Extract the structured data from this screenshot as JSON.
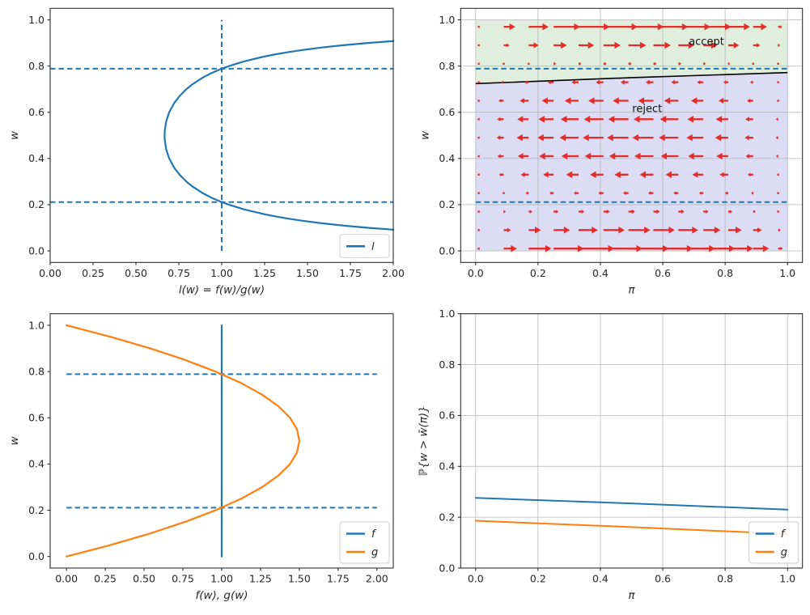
{
  "figure": {
    "background": "#ffffff",
    "description": "2x2 grid of statistical plots: likelihood ratio, accept/reject phase diagram with vector field, densities f and g, acceptance probability"
  },
  "colors": {
    "blue": "#1f77b4",
    "orange": "#ff7f0e",
    "red": "#e52420",
    "black": "#000000",
    "grid": "#b0b0b0",
    "spine": "#1a1a1a",
    "accept_fill": "#dfeedd",
    "reject_fill": "#dcdcf5",
    "legend_border": "#cccccc"
  },
  "chart_data": [
    {
      "id": "likelihood_ratio",
      "type": "line",
      "xlabel": "l(w) = f(w)/g(w)",
      "ylabel": "w",
      "xlim": [
        0,
        2
      ],
      "ylim": [
        -0.05,
        1.05
      ],
      "grid": false,
      "xtick_values": [
        0,
        0.25,
        0.5,
        0.75,
        1.0,
        1.25,
        1.5,
        1.75,
        2.0
      ],
      "xtick_labels": [
        "0.00",
        "0.25",
        "0.50",
        "0.75",
        "1.00",
        "1.25",
        "1.50",
        "1.75",
        "2.00"
      ],
      "ytick_values": [
        0,
        0.2,
        0.4,
        0.6,
        0.8,
        1.0
      ],
      "ytick_labels": [
        "0.0",
        "0.2",
        "0.4",
        "0.6",
        "0.8",
        "1.0"
      ],
      "series": [
        {
          "name": "l",
          "color": "#1f77b4",
          "width": 2.2,
          "points": [
            [
              2.0,
              0.0918
            ],
            [
              1.852,
              0.1
            ],
            [
              1.702,
              0.11
            ],
            [
              1.578,
              0.12
            ],
            [
              1.474,
              0.13
            ],
            [
              1.384,
              0.14
            ],
            [
              1.307,
              0.15
            ],
            [
              1.24,
              0.16
            ],
            [
              1.129,
              0.18
            ],
            [
              1.042,
              0.2
            ],
            [
              1.0,
              0.2113
            ],
            [
              0.941,
              0.23
            ],
            [
              0.889,
              0.25
            ],
            [
              0.827,
              0.28
            ],
            [
              0.794,
              0.3
            ],
            [
              0.754,
              0.33
            ],
            [
              0.723,
              0.36
            ],
            [
              0.694,
              0.4
            ],
            [
              0.676,
              0.44
            ],
            [
              0.668,
              0.48
            ],
            [
              0.667,
              0.5
            ],
            [
              0.668,
              0.52
            ],
            [
              0.676,
              0.56
            ],
            [
              0.694,
              0.6
            ],
            [
              0.723,
              0.64
            ],
            [
              0.754,
              0.67
            ],
            [
              0.794,
              0.7
            ],
            [
              0.827,
              0.72
            ],
            [
              0.889,
              0.75
            ],
            [
              0.941,
              0.77
            ],
            [
              1.0,
              0.7887
            ],
            [
              1.042,
              0.8
            ],
            [
              1.129,
              0.82
            ],
            [
              1.24,
              0.84
            ],
            [
              1.307,
              0.85
            ],
            [
              1.384,
              0.86
            ],
            [
              1.474,
              0.87
            ],
            [
              1.578,
              0.88
            ],
            [
              1.702,
              0.89
            ],
            [
              1.852,
              0.9
            ],
            [
              2.0,
              0.9082
            ]
          ]
        }
      ],
      "dashed_guides": [
        {
          "orient": "h",
          "at": 0.7887,
          "from": 0,
          "to": 2
        },
        {
          "orient": "h",
          "at": 0.2113,
          "from": 0,
          "to": 2
        },
        {
          "orient": "v",
          "at": 1.0,
          "from": 0,
          "to": 1
        }
      ],
      "legend": {
        "loc": "lower right",
        "entries": [
          {
            "label": "l",
            "color": "#1f77b4"
          }
        ]
      }
    },
    {
      "id": "phase_quiver",
      "type": "quiver",
      "xlabel": "π",
      "ylabel": "w",
      "xlim": [
        -0.048,
        1.048
      ],
      "ylim": [
        -0.05,
        1.05
      ],
      "grid": true,
      "xtick_values": [
        0,
        0.2,
        0.4,
        0.6,
        0.8,
        1.0
      ],
      "xtick_labels": [
        "0.0",
        "0.2",
        "0.4",
        "0.6",
        "0.8",
        "1.0"
      ],
      "ytick_values": [
        0,
        0.2,
        0.4,
        0.6,
        0.8,
        1.0
      ],
      "ytick_labels": [
        "0.0",
        "0.2",
        "0.4",
        "0.6",
        "0.8",
        "1.0"
      ],
      "regions": [
        {
          "name": "accept",
          "color": "#dfeedd",
          "side": "above"
        },
        {
          "name": "reject",
          "color": "#dcdcf5",
          "side": "below"
        }
      ],
      "threshold_line": {
        "name": "wbar",
        "color": "#000000",
        "width": 1.6,
        "points": [
          [
            0,
            0.724
          ],
          [
            0.5,
            0.75
          ],
          [
            1,
            0.772
          ]
        ]
      },
      "dashed_guides": [
        {
          "orient": "h",
          "at": 0.7887,
          "from": 0,
          "to": 1
        },
        {
          "orient": "h",
          "at": 0.2113,
          "from": 0,
          "to": 1
        }
      ],
      "quiver": {
        "color": "#e52420",
        "pi_grid": [
          0.01,
          0.09,
          0.17,
          0.25,
          0.33,
          0.41,
          0.49,
          0.57,
          0.65,
          0.73,
          0.81,
          0.89,
          0.97
        ],
        "w_grid": [
          0.01,
          0.09,
          0.17,
          0.25,
          0.33,
          0.41,
          0.49,
          0.57,
          0.65,
          0.73,
          0.81,
          0.89,
          0.97
        ],
        "row_factors": [
          0.9406,
          0.5086,
          0.1534,
          -0.125,
          -0.3266,
          -0.4514,
          -0.4994,
          -0.4706,
          -0.365,
          -0.1826,
          0.0766,
          0.4126,
          0.8254
        ],
        "col_factors": [
          0.0099,
          0.0819,
          0.1411,
          0.1875,
          0.2211,
          0.2419,
          0.2499,
          0.2451,
          0.2275,
          0.1971,
          0.1539,
          0.0979,
          0.0291
        ],
        "scale": 0.55
      },
      "annotations": [
        {
          "text": "accept",
          "x": 0.74,
          "y": 0.905
        },
        {
          "text": "reject",
          "x": 0.55,
          "y": 0.615
        }
      ],
      "legend": null
    },
    {
      "id": "densities",
      "type": "line",
      "xlabel": "f(w), g(w)",
      "ylabel": "w",
      "xlim": [
        -0.105,
        2.105
      ],
      "ylim": [
        -0.05,
        1.05
      ],
      "grid": false,
      "xtick_values": [
        0,
        0.25,
        0.5,
        0.75,
        1.0,
        1.25,
        1.5,
        1.75,
        2.0
      ],
      "xtick_labels": [
        "0.00",
        "0.25",
        "0.50",
        "0.75",
        "1.00",
        "1.25",
        "1.50",
        "1.75",
        "2.00"
      ],
      "ytick_values": [
        0,
        0.2,
        0.4,
        0.6,
        0.8,
        1.0
      ],
      "ytick_labels": [
        "0.0",
        "0.2",
        "0.4",
        "0.6",
        "0.8",
        "1.0"
      ],
      "series": [
        {
          "name": "f",
          "color": "#1f77b4",
          "width": 2.2,
          "points": [
            [
              1,
              0
            ],
            [
              1,
              1
            ]
          ]
        },
        {
          "name": "g",
          "color": "#ff7f0e",
          "width": 2.2,
          "points": [
            [
              0,
              0
            ],
            [
              0.285,
              0.05
            ],
            [
              0.54,
              0.1
            ],
            [
              0.765,
              0.15
            ],
            [
              0.96,
              0.2
            ],
            [
              1.125,
              0.25
            ],
            [
              1.26,
              0.3
            ],
            [
              1.365,
              0.35
            ],
            [
              1.44,
              0.4
            ],
            [
              1.485,
              0.45
            ],
            [
              1.5,
              0.5
            ],
            [
              1.485,
              0.55
            ],
            [
              1.44,
              0.6
            ],
            [
              1.365,
              0.65
            ],
            [
              1.26,
              0.7
            ],
            [
              1.125,
              0.75
            ],
            [
              0.96,
              0.8
            ],
            [
              0.765,
              0.85
            ],
            [
              0.54,
              0.9
            ],
            [
              0.285,
              0.95
            ],
            [
              0,
              1.0
            ]
          ]
        }
      ],
      "dashed_guides": [
        {
          "orient": "h",
          "at": 0.7887,
          "from": 0,
          "to": 2
        },
        {
          "orient": "h",
          "at": 0.2113,
          "from": 0,
          "to": 2
        }
      ],
      "legend": {
        "loc": "lower right",
        "entries": [
          {
            "label": "f",
            "color": "#1f77b4"
          },
          {
            "label": "g",
            "color": "#ff7f0e"
          }
        ]
      }
    },
    {
      "id": "acceptance_probability",
      "type": "line",
      "xlabel": "π",
      "ylabel": "ℙ{w > w̄(π)}",
      "xlim": [
        -0.048,
        1.048
      ],
      "ylim": [
        0,
        1
      ],
      "grid": true,
      "xtick_values": [
        0,
        0.2,
        0.4,
        0.6,
        0.8,
        1.0
      ],
      "xtick_labels": [
        "0.0",
        "0.2",
        "0.4",
        "0.6",
        "0.8",
        "1.0"
      ],
      "ytick_values": [
        0,
        0.2,
        0.4,
        0.6,
        0.8,
        1.0
      ],
      "ytick_labels": [
        "0.0",
        "0.2",
        "0.4",
        "0.6",
        "0.8",
        "1.0"
      ],
      "series": [
        {
          "name": "f",
          "color": "#1f77b4",
          "width": 2.0,
          "points": [
            [
              0,
              0.276
            ],
            [
              0.5,
              0.254
            ],
            [
              1,
              0.23
            ]
          ]
        },
        {
          "name": "g",
          "color": "#ff7f0e",
          "width": 2.0,
          "points": [
            [
              0,
              0.186
            ],
            [
              0.5,
              0.161
            ],
            [
              1,
              0.134
            ]
          ]
        }
      ],
      "dashed_guides": [],
      "legend": {
        "loc": "lower right",
        "entries": [
          {
            "label": "f",
            "color": "#1f77b4"
          },
          {
            "label": "g",
            "color": "#ff7f0e"
          }
        ]
      }
    }
  ]
}
